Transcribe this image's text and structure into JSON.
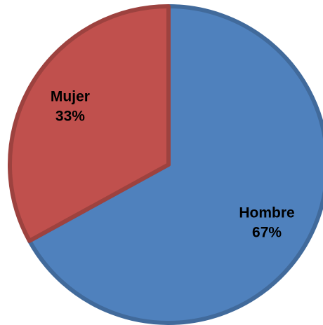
{
  "chart_data": {
    "type": "pie",
    "categories": [
      "Hombre",
      "Mujer"
    ],
    "values": [
      67,
      33
    ],
    "value_labels": [
      "67%",
      "33%"
    ],
    "colors": [
      "#4f81bd",
      "#c0504d"
    ]
  }
}
